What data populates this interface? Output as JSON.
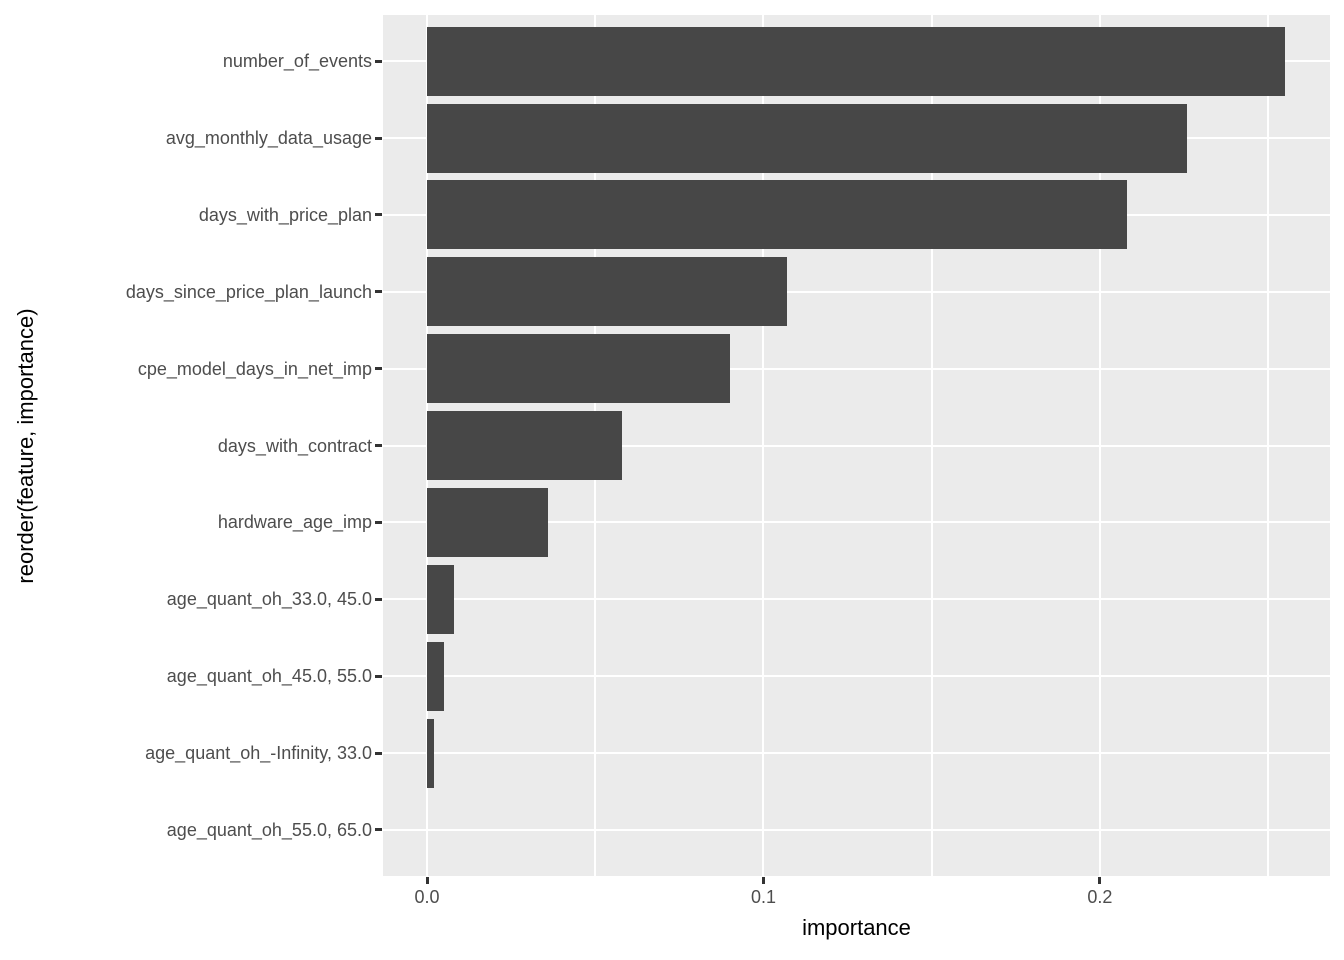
{
  "chart_data": {
    "type": "bar",
    "orientation": "horizontal",
    "title": "",
    "xlabel": "importance",
    "ylabel": "reorder(feature, importance)",
    "categories": [
      "number_of_events",
      "avg_monthly_data_usage",
      "days_with_price_plan",
      "days_since_price_plan_launch",
      "cpe_model_days_in_net_imp",
      "days_with_contract",
      "hardware_age_imp",
      "age_quant_oh_33.0, 45.0",
      "age_quant_oh_45.0, 55.0",
      "age_quant_oh_-Infinity, 33.0",
      "age_quant_oh_55.0, 65.0"
    ],
    "values": [
      0.255,
      0.226,
      0.208,
      0.107,
      0.09,
      0.058,
      0.036,
      0.008,
      0.005,
      0.002,
      0.0
    ],
    "x_ticks": [
      {
        "value": 0.0,
        "label": "0.0"
      },
      {
        "value": 0.1,
        "label": "0.1"
      },
      {
        "value": 0.2,
        "label": "0.2"
      }
    ],
    "x_minor_ticks": [
      0.05,
      0.15,
      0.25
    ],
    "xlim": [
      -0.0131,
      0.2684
    ],
    "grid": "vertical major+minor and horizontal major, white on grey panel",
    "legend_position": "none",
    "colors": {
      "bar_fill": "#474747",
      "panel_background": "#EBEBEB",
      "gridline": "#FFFFFF",
      "tick_label_text": "#4D4D4D",
      "axis_title_text": "#000000",
      "tick_mark": "#333333",
      "figure_background": "#FFFFFF"
    }
  }
}
